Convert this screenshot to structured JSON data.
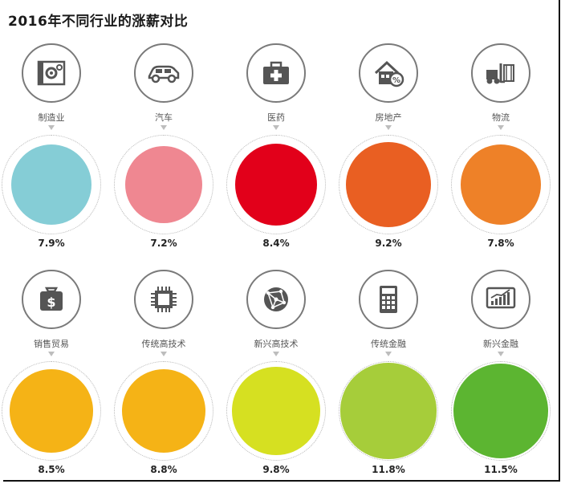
{
  "title": "2016年不同行业的涨薪对比",
  "chart_data": {
    "type": "bubble",
    "title": "2016年不同行业的涨薪对比",
    "categories": [
      "制造业",
      "汽车",
      "医药",
      "房地产",
      "物流",
      "销售贸易",
      "传统高技术",
      "新兴高技术",
      "传统金融",
      "新兴金融"
    ],
    "values": [
      7.9,
      7.2,
      8.4,
      9.2,
      7.8,
      8.5,
      8.8,
      9.8,
      11.8,
      11.5
    ],
    "value_labels": [
      "7.9%",
      "7.2%",
      "8.4%",
      "9.2%",
      "7.8%",
      "8.5%",
      "8.8%",
      "9.8%",
      "11.8%",
      "11.5%"
    ],
    "colors": [
      "#85cdd6",
      "#ef8791",
      "#e2001a",
      "#e95f22",
      "#ee8128",
      "#f5b316",
      "#f5b316",
      "#d6e021",
      "#a6cd3a",
      "#5cb531"
    ],
    "icons": [
      "factory-gear-icon",
      "car-icon",
      "medical-kit-icon",
      "house-percent-icon",
      "forklift-icon",
      "money-bag-icon",
      "chip-icon",
      "globe-network-icon",
      "calculator-icon",
      "chart-monitor-icon"
    ]
  }
}
